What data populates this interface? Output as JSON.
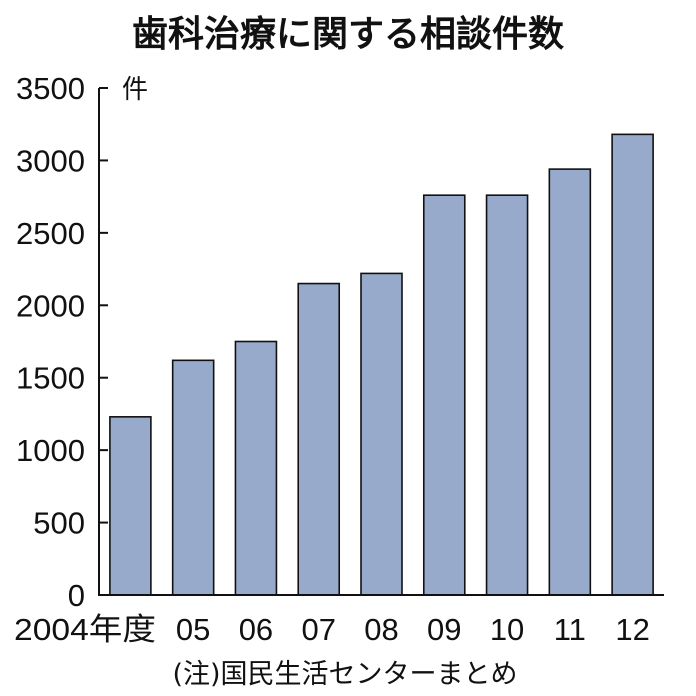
{
  "chart_data": {
    "type": "bar",
    "title": "歯科治療に関する相談件数",
    "unit": "件",
    "categories": [
      "2004年度",
      "05",
      "06",
      "07",
      "08",
      "09",
      "10",
      "11",
      "12"
    ],
    "values": [
      1230,
      1620,
      1750,
      2150,
      2220,
      2760,
      2760,
      2940,
      3180
    ],
    "ylim": [
      0,
      3500
    ],
    "yticks": [
      0,
      500,
      1000,
      1500,
      2000,
      2500,
      3000,
      3500
    ],
    "ytick_labels": [
      "0",
      "500",
      "1000",
      "1500",
      "2000",
      "2500",
      "3000",
      "3500"
    ],
    "xlabel": "",
    "ylabel": "",
    "grid": false,
    "note": "(注)国民生活センターまとめ",
    "colors": {
      "bar": "#97aacb",
      "outline": "#111111",
      "background": "#ffffff"
    }
  }
}
